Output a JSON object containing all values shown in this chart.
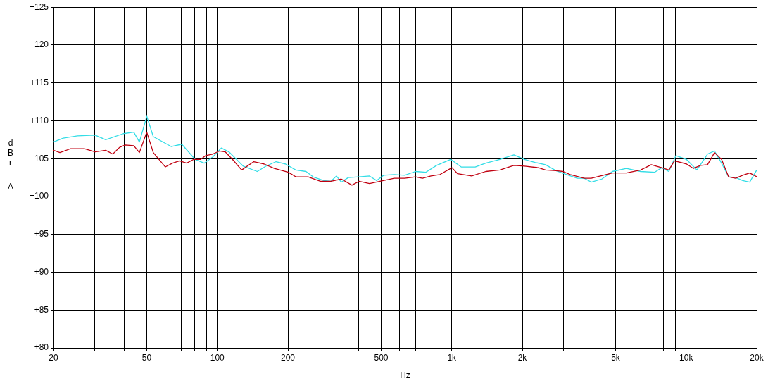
{
  "chart_data": {
    "type": "line",
    "xlabel": "Hz",
    "ylabel": "dBr A",
    "log": "x",
    "grid": true,
    "legend": false,
    "marker": "none",
    "line_style": "solid",
    "xlim": [
      20,
      20000
    ],
    "ylim": [
      80,
      125
    ],
    "xticks": [
      20,
      {
        "value": 30,
        "label": null
      },
      {
        "value": 40,
        "label": null
      },
      50,
      {
        "value": 60,
        "label": null
      },
      {
        "value": 70,
        "label": null
      },
      {
        "value": 80,
        "label": null
      },
      {
        "value": 90,
        "label": null
      },
      100,
      200,
      {
        "value": 300,
        "label": null
      },
      {
        "value": 400,
        "label": null
      },
      500,
      {
        "value": 600,
        "label": null
      },
      {
        "value": 700,
        "label": null
      },
      {
        "value": 800,
        "label": null
      },
      {
        "value": 900,
        "label": null
      },
      {
        "value": 1000,
        "label": "1k"
      },
      {
        "value": 2000,
        "label": "2k"
      },
      {
        "value": 3000,
        "label": null
      },
      {
        "value": 4000,
        "label": null
      },
      {
        "value": 5000,
        "label": "5k"
      },
      {
        "value": 6000,
        "label": null
      },
      {
        "value": 7000,
        "label": null
      },
      {
        "value": 8000,
        "label": null
      },
      {
        "value": 9000,
        "label": null
      },
      {
        "value": 10000,
        "label": "10k"
      },
      {
        "value": 20000,
        "label": "20k"
      }
    ],
    "yticks": [
      {
        "value": 80,
        "label": "+80"
      },
      {
        "value": 85,
        "label": "+85"
      },
      {
        "value": 90,
        "label": "+90"
      },
      {
        "value": 95,
        "label": "+95"
      },
      {
        "value": 100,
        "label": "+100"
      },
      {
        "value": 105,
        "label": "+105"
      },
      {
        "value": 110,
        "label": "+110"
      },
      {
        "value": 115,
        "label": "+115"
      },
      {
        "value": 120,
        "label": "+120"
      },
      {
        "value": 125,
        "label": "+125"
      }
    ],
    "series": [
      {
        "color": "#33dde6",
        "x": [
          20,
          22,
          25.3,
          30.1,
          33.4,
          39.7,
          44,
          46.5,
          50,
          53.3,
          63.5,
          70.5,
          80.4,
          87.9,
          95.5,
          104,
          112,
          129,
          148,
          161,
          178,
          195,
          216,
          239,
          256,
          284,
          305,
          322,
          338,
          362,
          402,
          446,
          478,
          512,
          568,
          630,
          700,
          776,
          861,
          989,
          1097,
          1259,
          1396,
          1603,
          1841,
          2042,
          2265,
          2512,
          2786,
          3090,
          3428,
          3673,
          3936,
          4365,
          4842,
          5559,
          6393,
          7345,
          7871,
          8433,
          9038,
          10023,
          11117,
          12331,
          13213,
          14158,
          15171,
          16255,
          17419,
          18664,
          20000
        ],
        "values": [
          107.2,
          107.7,
          108,
          108.1,
          107.5,
          108.3,
          108.5,
          107.2,
          110.6,
          107.9,
          106.6,
          106.9,
          104.9,
          104.4,
          105.2,
          106.4,
          105.9,
          104,
          103.3,
          104,
          104.6,
          104.3,
          103.5,
          103.3,
          102.6,
          102.1,
          102,
          102.7,
          101.9,
          102.5,
          102.6,
          102.7,
          102.1,
          102.8,
          102.9,
          102.8,
          103.3,
          103.2,
          104.1,
          104.9,
          103.9,
          103.9,
          104.4,
          104.9,
          105.5,
          104.9,
          104.5,
          104.2,
          103.4,
          102.9,
          102.4,
          102.4,
          101.9,
          102.3,
          103.3,
          103.7,
          103.3,
          103.2,
          103.8,
          103.3,
          105.4,
          104.9,
          103.5,
          105.6,
          106,
          104.4,
          102.6,
          102.5,
          102.1,
          101.9,
          103.5
        ]
      },
      {
        "color": "#c00010",
        "x": [
          20,
          21.3,
          23.6,
          27.1,
          30.1,
          33.4,
          35.8,
          38.3,
          40.5,
          44,
          46.5,
          50,
          53.3,
          60,
          64.4,
          69,
          74,
          79.3,
          84.9,
          89.1,
          95.5,
          102,
          108,
          116,
          127,
          143,
          158,
          175,
          201,
          216,
          244,
          275,
          305,
          338,
          375,
          402,
          446,
          494,
          568,
          630,
          700,
          750,
          815,
          891,
          1002,
          1059,
          1216,
          1396,
          1603,
          1841,
          2042,
          2344,
          2512,
          2786,
          2985,
          3199,
          3673,
          3936,
          4842,
          5559,
          6393,
          7096,
          7871,
          8433,
          8914,
          10023,
          10740,
          11508,
          12331,
          13213,
          14158,
          15171,
          16255,
          17419,
          18664,
          20000
        ],
        "values": [
          106.1,
          105.8,
          106.3,
          106.3,
          105.9,
          106.1,
          105.6,
          106.5,
          106.8,
          106.7,
          105.8,
          108.5,
          105.8,
          103.9,
          104.4,
          104.7,
          104.4,
          104.9,
          104.9,
          105.4,
          105.6,
          106,
          105.9,
          104.9,
          103.5,
          104.6,
          104.3,
          103.7,
          103.2,
          102.6,
          102.6,
          102,
          102,
          102.3,
          101.5,
          102,
          101.7,
          102,
          102.4,
          102.4,
          102.6,
          102.4,
          102.7,
          102.9,
          103.8,
          103,
          102.7,
          103.3,
          103.5,
          104.1,
          104,
          103.8,
          103.5,
          103.4,
          103.3,
          102.9,
          102.4,
          102.4,
          103.1,
          103.1,
          103.5,
          104.2,
          103.8,
          103.5,
          104.7,
          104.3,
          103.7,
          104.1,
          104.2,
          105.8,
          104.9,
          102.6,
          102.4,
          102.8,
          103.1,
          102.6
        ]
      }
    ]
  }
}
